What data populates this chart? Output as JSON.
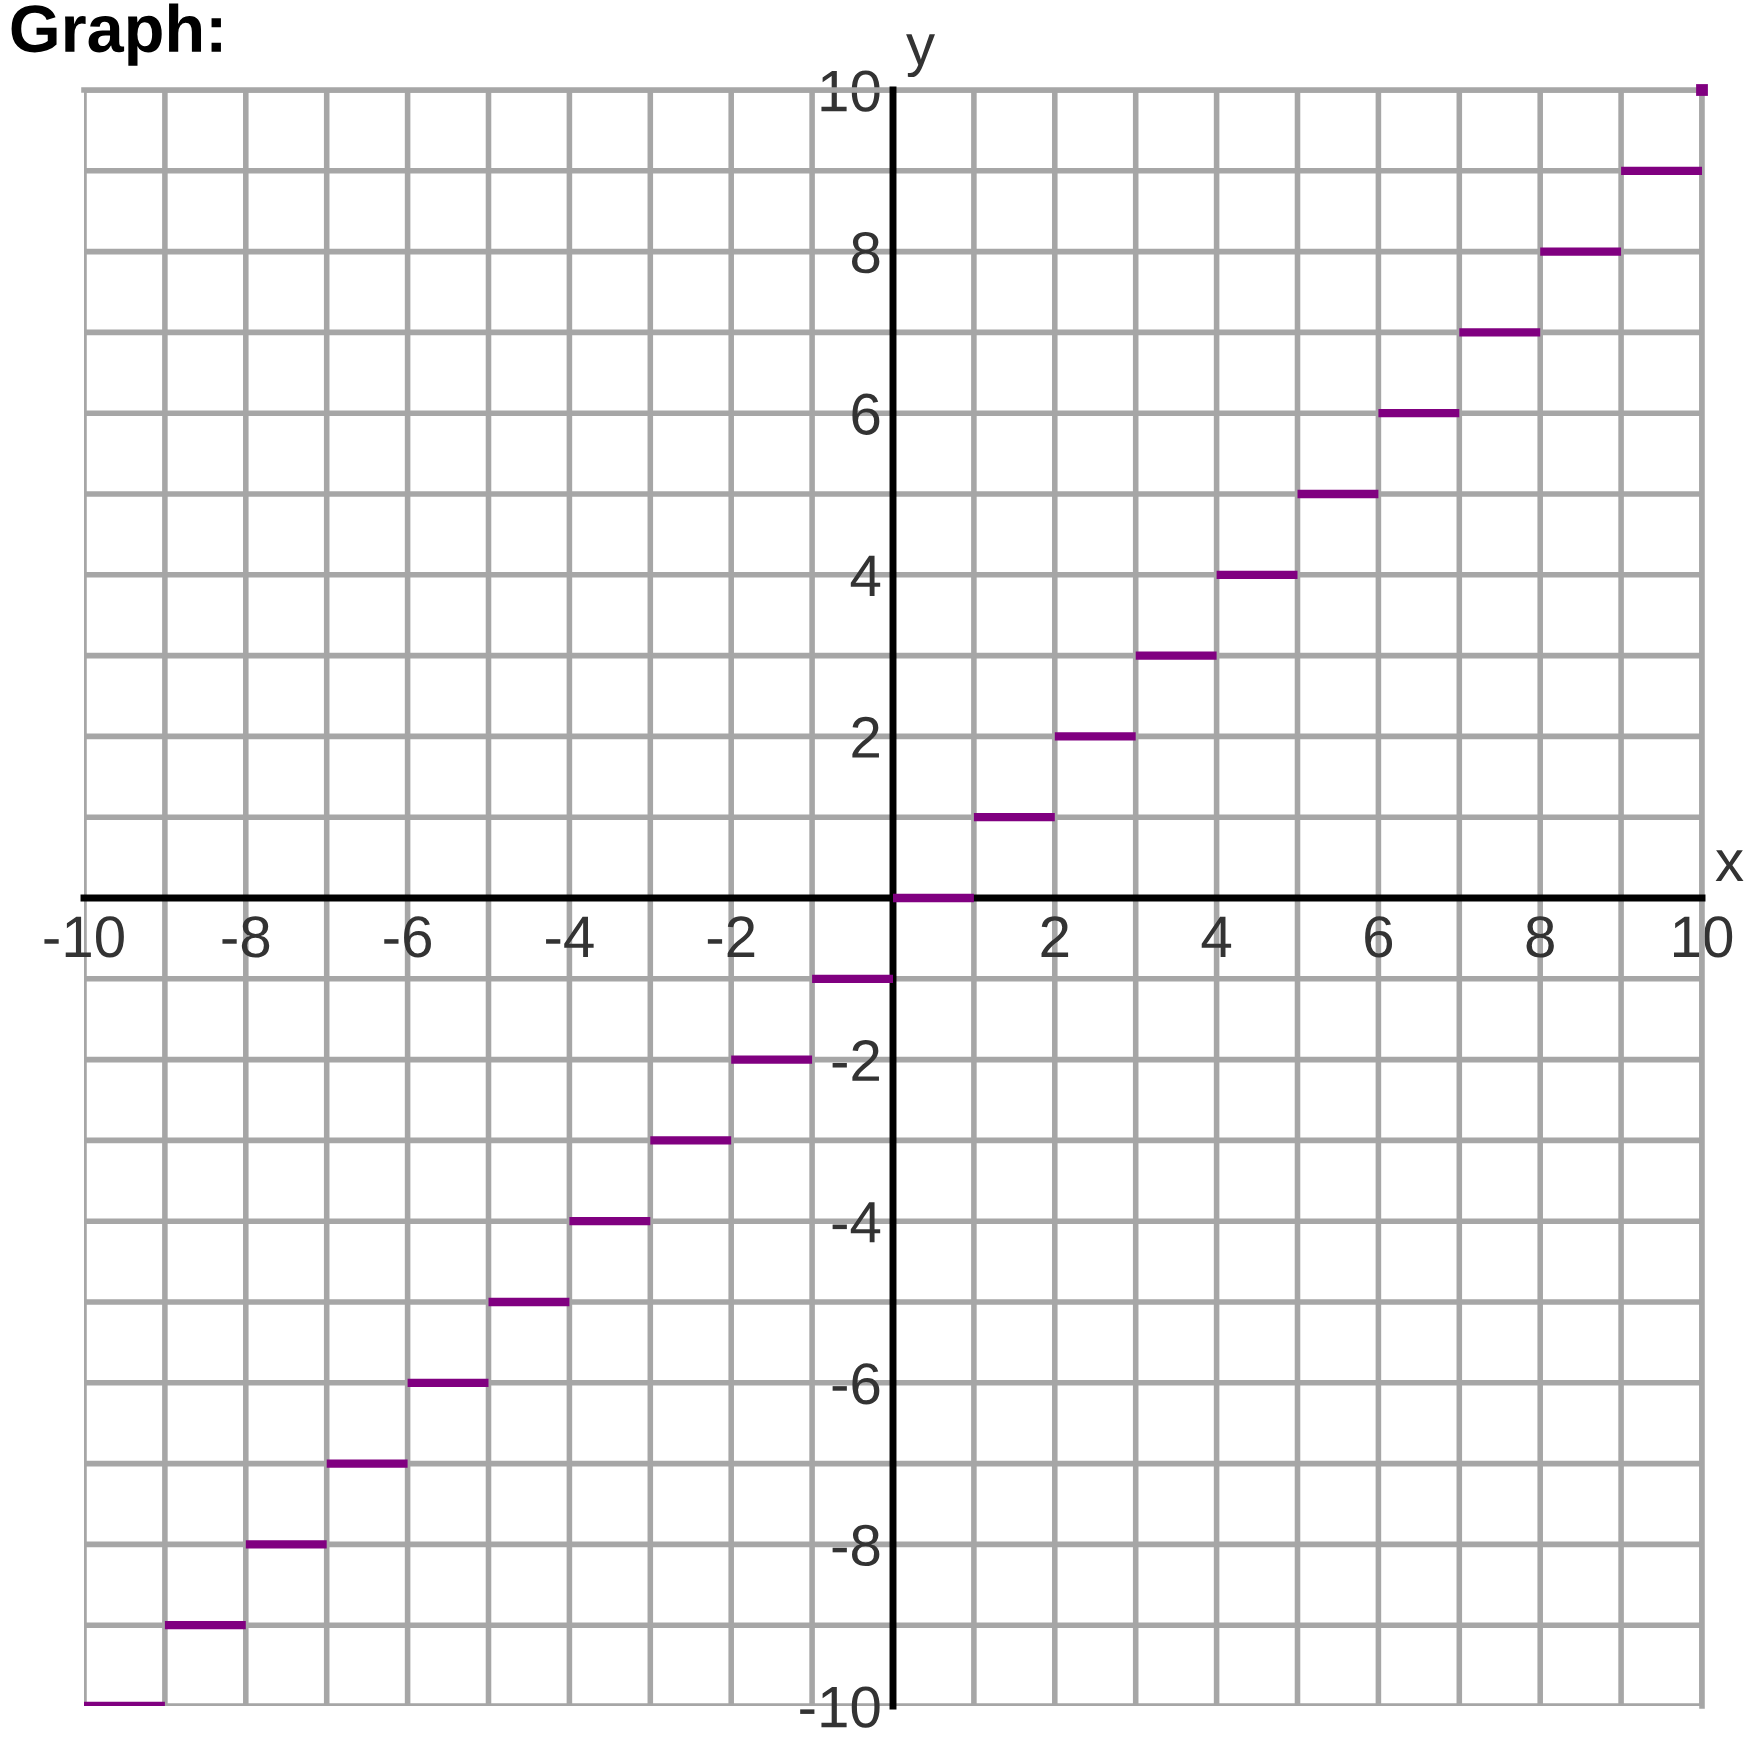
{
  "chart_data": {
    "type": "line",
    "title": "Graph:",
    "xlabel": "x",
    "ylabel": "y",
    "series": [
      {
        "color": "#800080",
        "x": [
          -10,
          -9
        ],
        "values": [
          -10,
          -10
        ]
      },
      {
        "color": "#800080",
        "x": [
          -9,
          -8
        ],
        "values": [
          -9,
          -9
        ]
      },
      {
        "color": "#800080",
        "x": [
          -8,
          -7
        ],
        "values": [
          -8,
          -8
        ]
      },
      {
        "color": "#800080",
        "x": [
          -7,
          -6
        ],
        "values": [
          -7,
          -7
        ]
      },
      {
        "color": "#800080",
        "x": [
          -6,
          -5
        ],
        "values": [
          -6,
          -6
        ]
      },
      {
        "color": "#800080",
        "x": [
          -5,
          -4
        ],
        "values": [
          -5,
          -5
        ]
      },
      {
        "color": "#800080",
        "x": [
          -4,
          -3
        ],
        "values": [
          -4,
          -4
        ]
      },
      {
        "color": "#800080",
        "x": [
          -3,
          -2
        ],
        "values": [
          -3,
          -3
        ]
      },
      {
        "color": "#800080",
        "x": [
          -2,
          -1
        ],
        "values": [
          -2,
          -2
        ]
      },
      {
        "color": "#800080",
        "x": [
          -1,
          0
        ],
        "values": [
          -1,
          -1
        ]
      },
      {
        "color": "#800080",
        "x": [
          0,
          1
        ],
        "values": [
          0,
          0
        ]
      },
      {
        "color": "#800080",
        "x": [
          1,
          2
        ],
        "values": [
          1,
          1
        ]
      },
      {
        "color": "#800080",
        "x": [
          2,
          3
        ],
        "values": [
          2,
          2
        ]
      },
      {
        "color": "#800080",
        "x": [
          3,
          4
        ],
        "values": [
          3,
          3
        ]
      },
      {
        "color": "#800080",
        "x": [
          4,
          5
        ],
        "values": [
          4,
          4
        ]
      },
      {
        "color": "#800080",
        "x": [
          5,
          6
        ],
        "values": [
          5,
          5
        ]
      },
      {
        "color": "#800080",
        "x": [
          6,
          7
        ],
        "values": [
          6,
          6
        ]
      },
      {
        "color": "#800080",
        "x": [
          7,
          8
        ],
        "values": [
          7,
          7
        ]
      },
      {
        "color": "#800080",
        "x": [
          8,
          9
        ],
        "values": [
          8,
          8
        ]
      },
      {
        "color": "#800080",
        "x": [
          9,
          10
        ],
        "values": [
          9,
          9
        ]
      },
      {
        "type": "scatter",
        "color": "#800080",
        "marker": "square",
        "x": [
          10
        ],
        "values": [
          10
        ]
      }
    ],
    "xlim": [
      -10,
      10
    ],
    "ylim": [
      -10,
      10
    ],
    "xticks": [
      -10,
      {
        "value": -9,
        "label": null
      },
      -8,
      {
        "value": -7,
        "label": null
      },
      -6,
      {
        "value": -5,
        "label": null
      },
      -4,
      {
        "value": -3,
        "label": null
      },
      -2,
      {
        "value": -1,
        "label": null
      },
      {
        "value": 0,
        "label": null
      },
      {
        "value": 1,
        "label": null
      },
      2,
      {
        "value": 3,
        "label": null
      },
      4,
      {
        "value": 5,
        "label": null
      },
      6,
      {
        "value": 7,
        "label": null
      },
      8,
      {
        "value": 9,
        "label": null
      },
      10
    ],
    "yticks": [
      -10,
      {
        "value": -9,
        "label": null
      },
      -8,
      {
        "value": -7,
        "label": null
      },
      -6,
      {
        "value": -5,
        "label": null
      },
      -4,
      {
        "value": -3,
        "label": null
      },
      -2,
      {
        "value": -1,
        "label": null
      },
      {
        "value": 0,
        "label": null
      },
      {
        "value": 1,
        "label": null
      },
      2,
      {
        "value": 3,
        "label": null
      },
      4,
      {
        "value": 5,
        "label": null
      },
      6,
      {
        "value": 7,
        "label": null
      },
      8,
      {
        "value": 9,
        "label": null
      },
      10
    ],
    "grid": true
  }
}
